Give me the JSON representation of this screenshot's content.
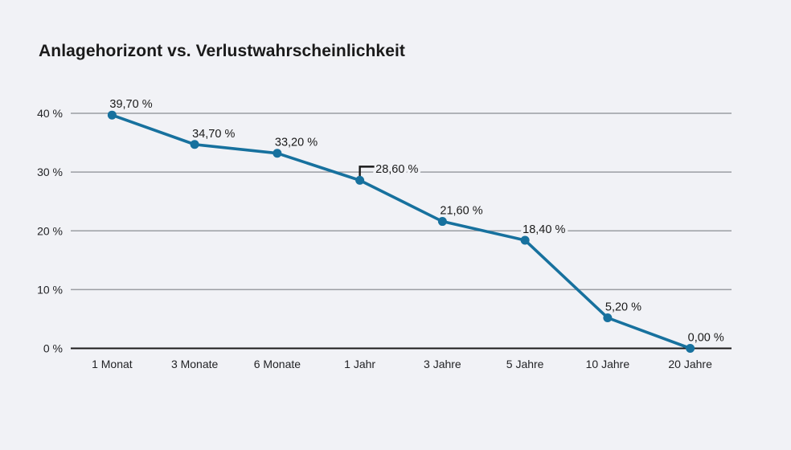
{
  "page": {
    "background": "#f1f2f6"
  },
  "chart_data": {
    "type": "line",
    "title": "Anlagehorizont vs. Verlustwahrscheinlichkeit",
    "categories": [
      "1 Monat",
      "3 Monate",
      "6 Monate",
      "1 Jahr",
      "3 Jahre",
      "5 Jahre",
      "10 Jahre",
      "20 Jahre"
    ],
    "values": [
      39.7,
      34.7,
      33.2,
      28.6,
      21.6,
      18.4,
      5.2,
      0.0
    ],
    "point_labels": [
      "39,70 %",
      "34,70 %",
      "33,20 %",
      "28,60 %",
      "21,60 %",
      "18,40 %",
      "5,20 %",
      "0,00 %"
    ],
    "callout_index": 3,
    "xlabel": "",
    "ylabel": "",
    "ylim": [
      0,
      40
    ],
    "y_ticks": [
      0,
      10,
      20,
      30,
      40
    ],
    "y_tick_labels": [
      "0 %",
      "10 %",
      "20 %",
      "30 %",
      "40 %"
    ],
    "grid": true,
    "legend": "none",
    "line_color": "#17719e",
    "marker_color": "#17719e",
    "grid_color": "#9b9ea3",
    "axis_color": "#1a1a1a",
    "callout_color": "#1a1a1a",
    "label_color": "#1a1a1a"
  }
}
